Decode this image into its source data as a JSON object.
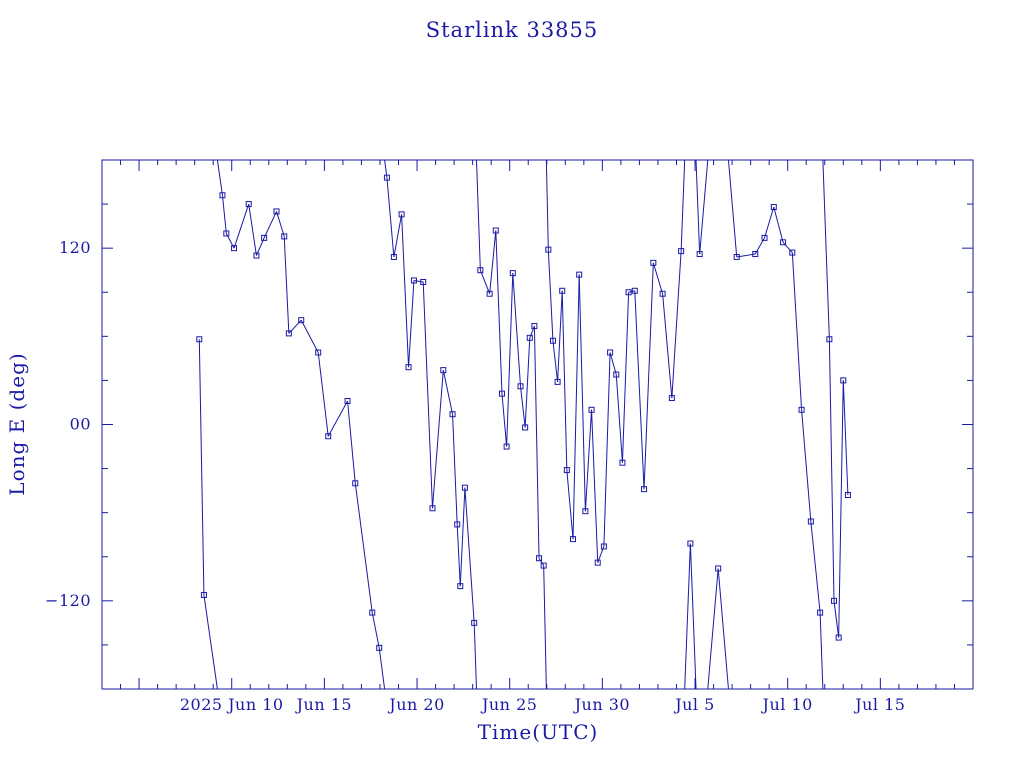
{
  "chart_data": {
    "type": "scatter",
    "title": "Starlink 33855",
    "xlabel": "Time(UTC)",
    "ylabel": "Long E (deg)",
    "ylim": [
      -180,
      180
    ],
    "xlim": [
      "2025-06-03",
      "2025-07-20"
    ],
    "yticks": [
      {
        "value": 120,
        "label": "120"
      },
      {
        "value": 0,
        "label": "00"
      },
      {
        "value": -120,
        "label": "−120"
      }
    ],
    "xticks": [
      {
        "date": "2025-06-10",
        "label": "2025 Jun 10"
      },
      {
        "date": "2025-06-15",
        "label": "Jun 15"
      },
      {
        "date": "2025-06-20",
        "label": "Jun 20"
      },
      {
        "date": "2025-06-25",
        "label": "Jun 25"
      },
      {
        "date": "2025-06-30",
        "label": "Jun 30"
      },
      {
        "date": "2025-07-05",
        "label": "Jul 5"
      },
      {
        "date": "2025-07-10",
        "label": "Jul 10"
      },
      {
        "date": "2025-07-15",
        "label": "Jul 15"
      }
    ],
    "grid": false,
    "line_color": "#1a1aa6",
    "series": [
      {
        "x": [
          "2025-06-08 06:00",
          "2025-06-08 12:00",
          "2025-06-09 12:00",
          "2025-06-09 17:00",
          "2025-06-10 03:00",
          "2025-06-10 22:00",
          "2025-06-11 08:00",
          "2025-06-11 18:00",
          "2025-06-12 10:00",
          "2025-06-12 20:00",
          "2025-06-13 02:00",
          "2025-06-13 18:00",
          "2025-06-14 16:00",
          "2025-06-15 05:00",
          "2025-06-16 06:00",
          "2025-06-16 16:00",
          "2025-06-17 14:00",
          "2025-06-17 23:00",
          "2025-06-18 09:00",
          "2025-06-18 18:00",
          "2025-06-19 04:00",
          "2025-06-19 13:00",
          "2025-06-19 20:00",
          "2025-06-20 08:00",
          "2025-06-20 20:00",
          "2025-06-21 10:00",
          "2025-06-21 22:00",
          "2025-06-22 04:00",
          "2025-06-22 08:00",
          "2025-06-22 14:00",
          "2025-06-23 02:00",
          "2025-06-23 10:00",
          "2025-06-23 22:00",
          "2025-06-24 06:00",
          "2025-06-24 14:00",
          "2025-06-24 20:00",
          "2025-06-25 04:00",
          "2025-06-25 14:00",
          "2025-06-25 20:00",
          "2025-06-26 02:00",
          "2025-06-26 08:00",
          "2025-06-26 14:00",
          "2025-06-26 20:00",
          "2025-06-27 02:00",
          "2025-06-27 08:00",
          "2025-06-27 14:00",
          "2025-06-27 20:00",
          "2025-06-28 02:00",
          "2025-06-28 10:00",
          "2025-06-28 18:00",
          "2025-06-29 02:00",
          "2025-06-29 10:00",
          "2025-06-29 18:00",
          "2025-06-30 02:00",
          "2025-06-30 10:00",
          "2025-06-30 18:00",
          "2025-07-01 02:00",
          "2025-07-01 10:00",
          "2025-07-01 18:00",
          "2025-07-02 06:00",
          "2025-07-02 18:00",
          "2025-07-03 06:00",
          "2025-07-03 18:00",
          "2025-07-04 06:00",
          "2025-07-04 18:00",
          "2025-07-05 06:00",
          "2025-07-06 06:00",
          "2025-07-07 06:00",
          "2025-07-08 06:00",
          "2025-07-08 18:00",
          "2025-07-09 06:00",
          "2025-07-09 18:00",
          "2025-07-10 06:00",
          "2025-07-10 18:00",
          "2025-07-11 06:00",
          "2025-07-11 18:00",
          "2025-07-12 06:00",
          "2025-07-12 12:00",
          "2025-07-12 18:00",
          "2025-07-13 00:00",
          "2025-07-13 06:00"
        ],
        "y": [
          58,
          -116,
          156,
          130,
          120,
          150,
          115,
          127,
          145,
          128,
          62,
          71,
          49,
          -8,
          16,
          -40,
          -128,
          -152,
          168,
          114,
          143,
          39,
          98,
          97,
          -57,
          37,
          7,
          -68,
          -110,
          -43,
          -135,
          105,
          89,
          132,
          21,
          -15,
          103,
          26,
          -2,
          59,
          67,
          -91,
          -96,
          119,
          57,
          29,
          91,
          -31,
          -78,
          102,
          -59,
          10,
          -94,
          -83,
          49,
          34,
          -26,
          90,
          91,
          -44,
          110,
          89,
          18,
          118,
          -81,
          116,
          -98,
          114,
          116,
          127,
          148,
          124,
          117,
          10,
          -66,
          -128,
          58,
          -120,
          -145,
          30,
          -48
        ]
      }
    ]
  }
}
